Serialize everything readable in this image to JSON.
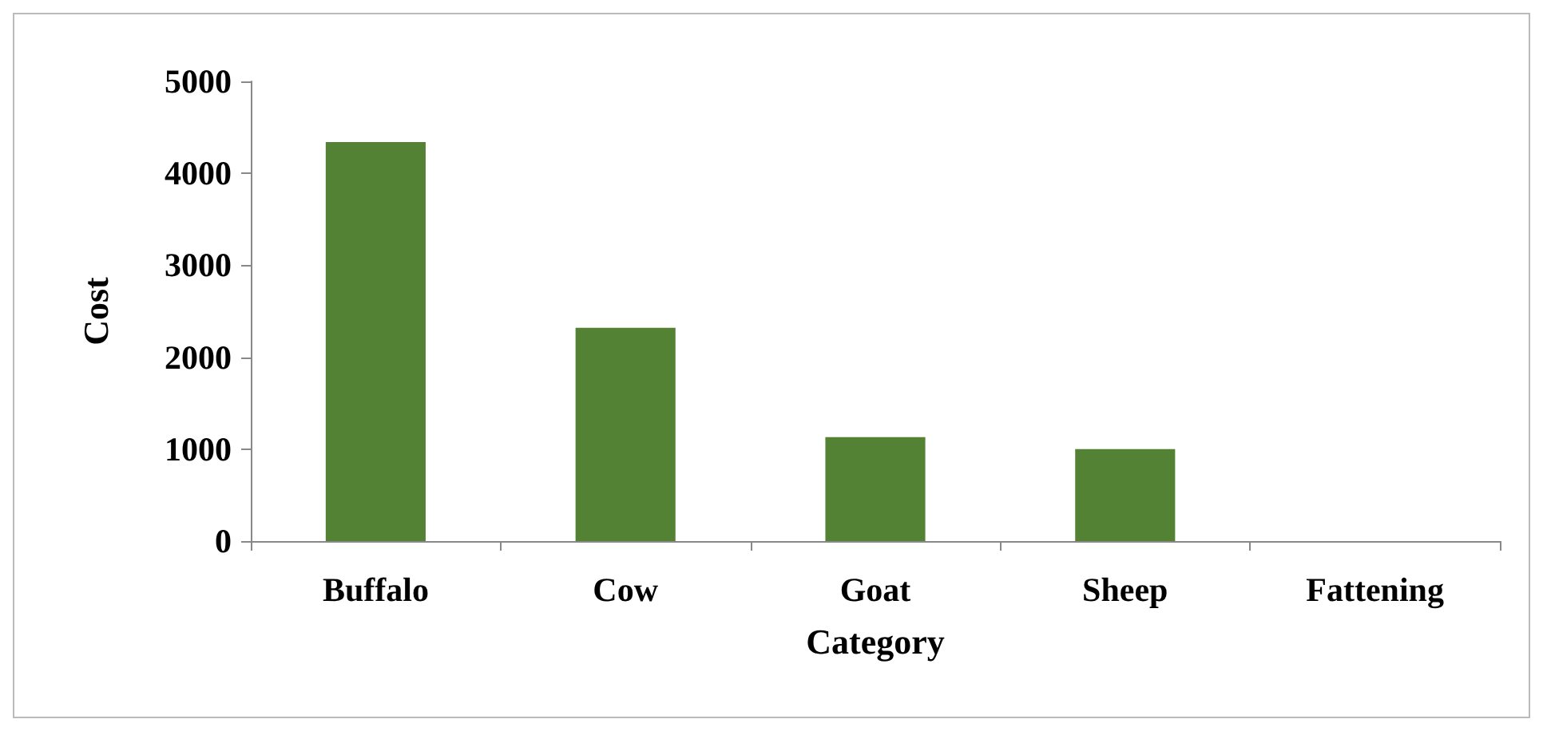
{
  "chart_data": {
    "type": "bar",
    "xlabel": "Category",
    "ylabel": "Cost",
    "categories": [
      "Buffalo",
      "Cow",
      "Goat",
      "Sheep",
      "Fattening"
    ],
    "values": [
      4340,
      2320,
      1130,
      1000,
      0
    ],
    "color": "#548235",
    "ylim": [
      0,
      5000
    ],
    "yticks": [
      0,
      1000,
      2000,
      3000,
      4000,
      5000
    ],
    "grid": false
  }
}
